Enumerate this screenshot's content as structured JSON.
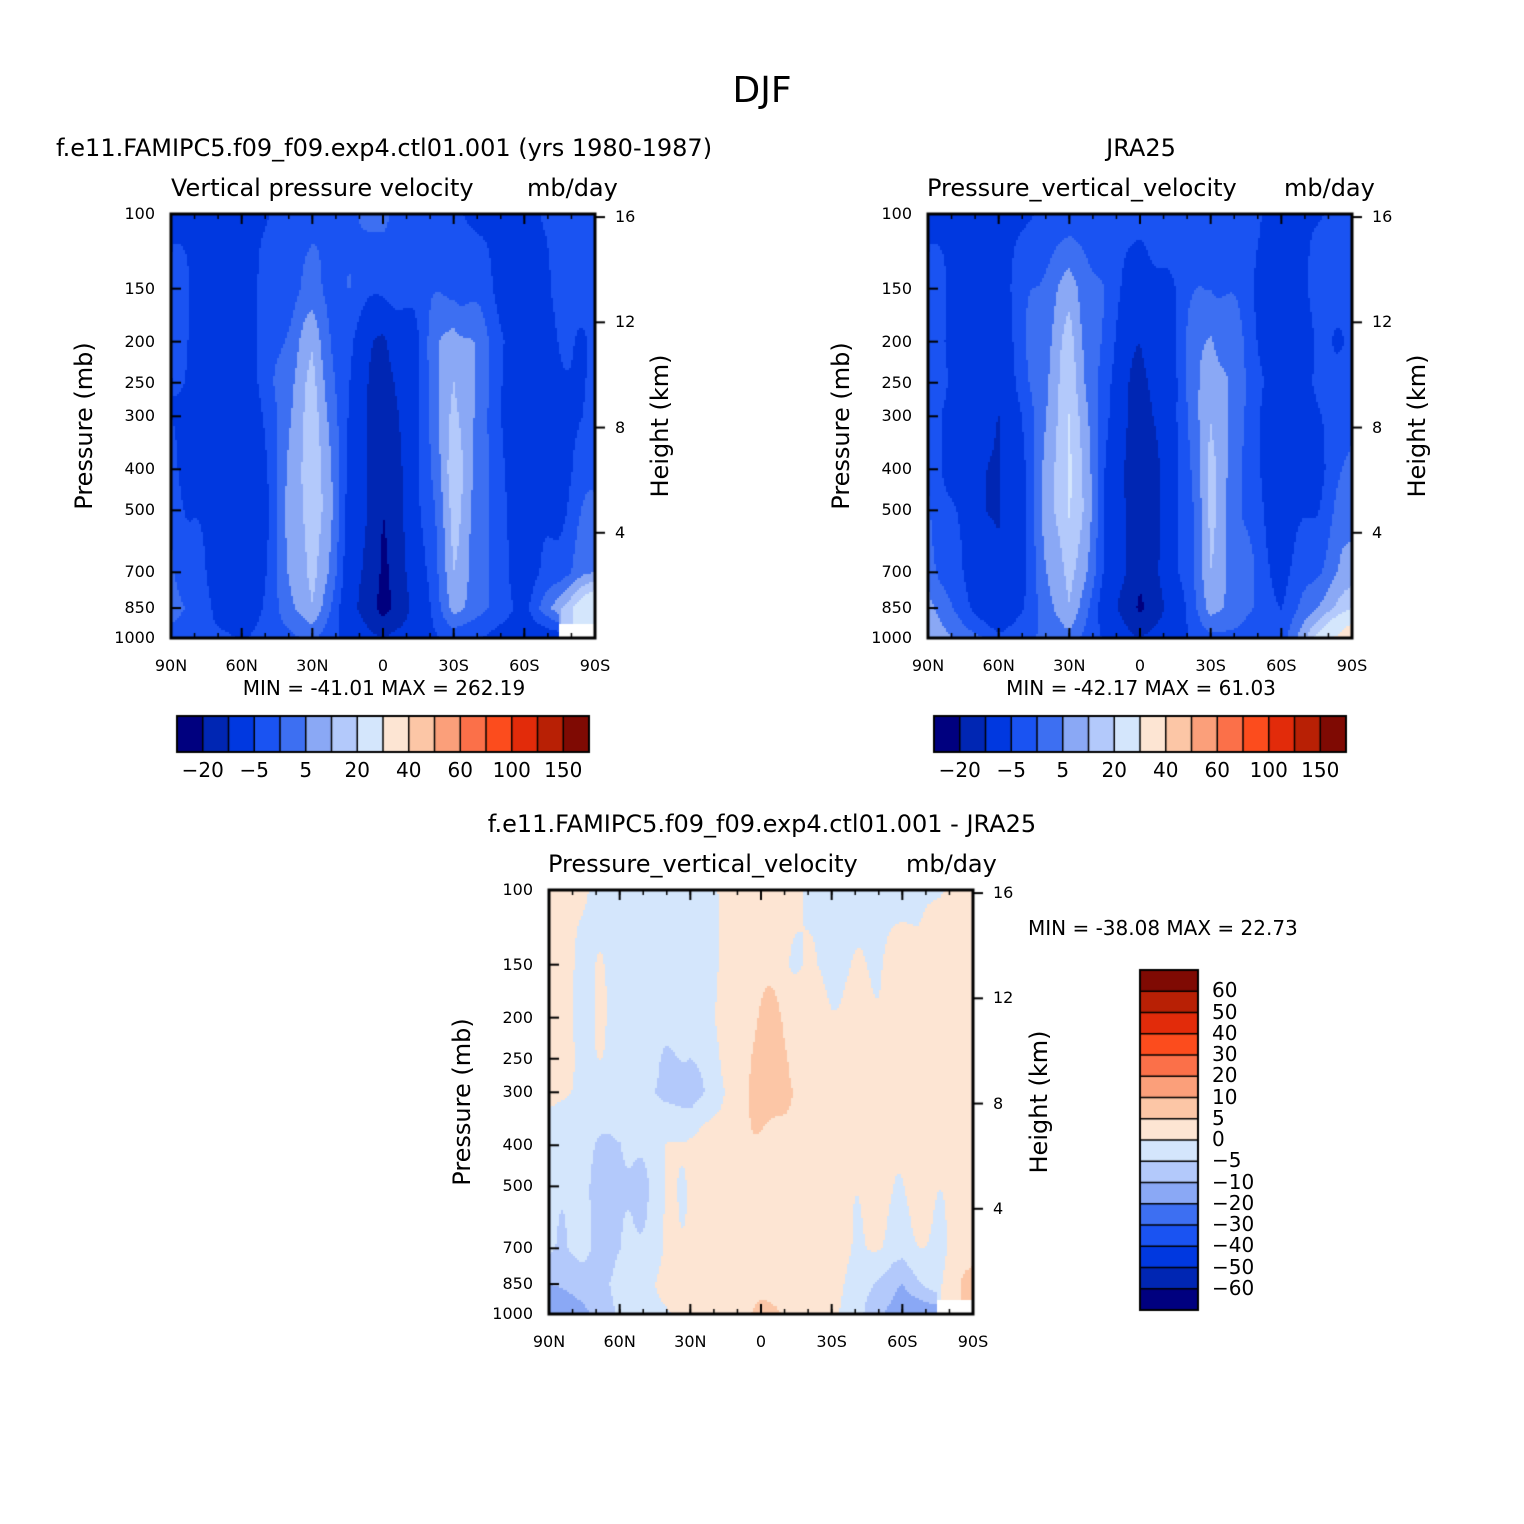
{
  "figure_title": "DJF",
  "colors": {
    "blues": [
      "#00007f",
      "#0026b3",
      "#0038e0",
      "#1a53f2",
      "#3d6ff2",
      "#8aa8f5",
      "#b3c9fb",
      "#d4e6fc"
    ],
    "reds": [
      "#fde5d3",
      "#fcc6a6",
      "#fb9f7a",
      "#fb7049",
      "#fc4c1d",
      "#e22b0a",
      "#b82005",
      "#7f0a03"
    ],
    "missing": "#ffffff"
  },
  "panels": [
    {
      "id": "model",
      "title": "f.e11.FAMIPC5.f09_f09.exp4.ctl01.001 (yrs 1980-1987)",
      "left_label": "Vertical pressure velocity",
      "right_label": "mb/day",
      "stats": "MIN = -41.01   MAX = 262.19"
    },
    {
      "id": "obs",
      "title": "JRA25",
      "left_label": "Pressure_vertical_velocity",
      "right_label": "mb/day",
      "stats": "MIN = -42.17   MAX =  61.03"
    },
    {
      "id": "diff",
      "title": "f.e11.FAMIPC5.f09_f09.exp4.ctl01.001 - JRA25",
      "left_label": "Pressure_vertical_velocity",
      "right_label": "mb/day",
      "stats": "MIN = -38.08   MAX =  22.73"
    }
  ],
  "axes": {
    "y_label": "Pressure (mb)",
    "y2_label": "Height (km)",
    "y_ticks": [
      "100",
      "150",
      "200",
      "250",
      "300",
      "400",
      "500",
      "700",
      "850",
      "1000"
    ],
    "y2_ticks": [
      "16",
      "12",
      "8",
      "4"
    ],
    "x_ticks": [
      "90N",
      "60N",
      "30N",
      "0",
      "30S",
      "60S",
      "90S"
    ]
  },
  "colorbars": {
    "horizontal_labels": [
      "-20",
      "-5",
      "5",
      "20",
      "40",
      "60",
      "100",
      "150"
    ],
    "vertical_labels": [
      "60",
      "50",
      "40",
      "30",
      "20",
      "10",
      "5",
      "0",
      "-5",
      "-10",
      "-20",
      "-30",
      "-40",
      "-50",
      "-60"
    ]
  },
  "chart_data": [
    {
      "type": "heatmap",
      "title": "f.e11.FAMIPC5.f09_f09.exp4.ctl01.001 (yrs 1980-1987)",
      "xlabel": "",
      "ylabel": "Pressure (mb)",
      "y2label": "Height (km)",
      "variable": "Vertical pressure velocity",
      "units": "mb/day",
      "x": [
        90,
        60,
        30,
        0,
        -30,
        -60,
        -90
      ],
      "y": [
        100,
        150,
        200,
        250,
        300,
        400,
        500,
        700,
        850,
        1000
      ],
      "ylim": [
        1000,
        100
      ],
      "y_scale": "log",
      "levels": [
        -30,
        -20,
        -10,
        -5,
        0,
        5,
        10,
        20,
        30,
        40,
        50,
        60,
        80,
        100,
        150
      ],
      "values": [
        [
          -10,
          -12,
          -6,
          -4,
          -10,
          -12,
          -5
        ],
        [
          -10,
          -12,
          -4,
          -8,
          -6,
          -12,
          -6
        ],
        [
          -10,
          -14,
          3,
          -22,
          4,
          -14,
          -8
        ],
        [
          -10,
          -15,
          6,
          -26,
          6,
          -16,
          -8
        ],
        [
          -10,
          -18,
          8,
          -28,
          7,
          -18,
          -8
        ],
        [
          -8,
          -20,
          10,
          -30,
          8,
          -18,
          -6
        ],
        [
          -6,
          -20,
          10,
          -30,
          6,
          -16,
          -4
        ],
        [
          -4,
          -18,
          8,
          -32,
          4,
          -14,
          0
        ],
        [
          -2,
          -16,
          5,
          -34,
          2,
          -12,
          20
        ],
        [
          -8,
          -10,
          -4,
          -20,
          -8,
          -14,
          null
        ]
      ],
      "min": -41.01,
      "max": 262.19
    },
    {
      "type": "heatmap",
      "title": "JRA25",
      "xlabel": "",
      "ylabel": "Pressure (mb)",
      "y2label": "Height (km)",
      "variable": "Pressure_vertical_velocity",
      "units": "mb/day",
      "x": [
        90,
        60,
        30,
        0,
        -30,
        -60,
        -90
      ],
      "y": [
        100,
        150,
        200,
        250,
        300,
        400,
        500,
        700,
        850,
        1000
      ],
      "ylim": [
        1000,
        100
      ],
      "y_scale": "log",
      "levels": [
        -30,
        -20,
        -10,
        -5,
        0,
        5,
        10,
        20,
        30,
        40,
        50,
        60,
        80,
        100,
        150
      ],
      "values": [
        [
          -10,
          -12,
          -8,
          -8,
          -6,
          -12,
          -8
        ],
        [
          -10,
          -12,
          2,
          -14,
          -4,
          -12,
          -6
        ],
        [
          -10,
          -14,
          6,
          -20,
          2,
          -14,
          -8
        ],
        [
          -8,
          -16,
          8,
          -24,
          4,
          -14,
          -6
        ],
        [
          -8,
          -20,
          10,
          -26,
          5,
          -16,
          -6
        ],
        [
          -6,
          -22,
          12,
          -30,
          6,
          -18,
          -4
        ],
        [
          -4,
          -22,
          12,
          -30,
          5,
          -16,
          -2
        ],
        [
          -2,
          -20,
          8,
          -28,
          4,
          -12,
          2
        ],
        [
          2,
          -18,
          5,
          -32,
          2,
          -10,
          10
        ],
        [
          4,
          -8,
          -2,
          -20,
          -6,
          -8,
          30
        ]
      ],
      "min": -42.17,
      "max": 61.03
    },
    {
      "type": "heatmap",
      "title": "f.e11.FAMIPC5.f09_f09.exp4.ctl01.001 - JRA25",
      "xlabel": "",
      "ylabel": "Pressure (mb)",
      "y2label": "Height (km)",
      "variable": "Pressure_vertical_velocity",
      "units": "mb/day",
      "x": [
        90,
        60,
        30,
        0,
        -30,
        -60,
        -90
      ],
      "y": [
        100,
        150,
        200,
        250,
        300,
        400,
        500,
        700,
        850,
        1000
      ],
      "ylim": [
        1000,
        100
      ],
      "y_scale": "log",
      "levels": [
        -60,
        -50,
        -40,
        -30,
        -20,
        -10,
        -5,
        0,
        5,
        10,
        20,
        30,
        40,
        50,
        60
      ],
      "values": [
        [
          2,
          -2,
          -2,
          3,
          -2,
          -2,
          2
        ],
        [
          2,
          -2,
          -2,
          3,
          -2,
          2,
          2
        ],
        [
          2,
          -2,
          -2,
          6,
          2,
          2,
          2
        ],
        [
          2,
          -2,
          -6,
          8,
          2,
          2,
          2
        ],
        [
          1,
          -2,
          -8,
          8,
          2,
          2,
          2
        ],
        [
          -2,
          -6,
          2,
          4,
          2,
          2,
          2
        ],
        [
          -2,
          -8,
          2,
          2,
          2,
          1,
          2
        ],
        [
          -4,
          -6,
          2,
          2,
          2,
          -2,
          2
        ],
        [
          -10,
          -4,
          4,
          4,
          2,
          -10,
          8
        ],
        [
          -18,
          -4,
          2,
          6,
          2,
          -14,
          null
        ]
      ],
      "min": -38.08,
      "max": 22.73
    }
  ]
}
